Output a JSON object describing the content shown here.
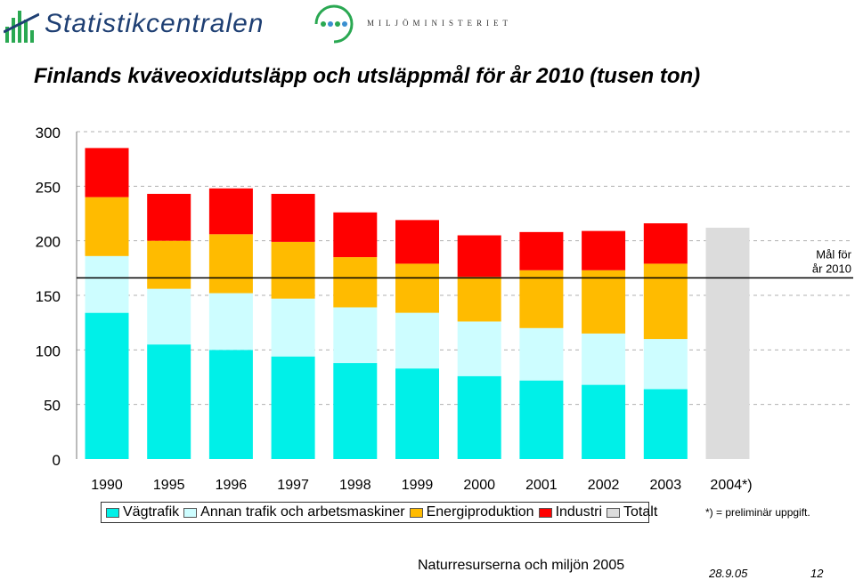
{
  "header": {
    "logo_left": "Statistikcentralen",
    "logo_right": "MILJÖMINISTERIET"
  },
  "colors": {
    "vagtrafik": "#00f0e8",
    "annan_trafik": "#cdfdff",
    "energi": "#ffbb00",
    "industri": "#ff0000",
    "totalt": "#dcdcdc",
    "logo_blue": "#1e3f73",
    "logo_green": "#2aa852"
  },
  "chart_data": {
    "type": "bar",
    "stacked": true,
    "title": "Finlands kväveoxidutsläpp och utsläppmål för år 2010 (tusen ton)",
    "categories": [
      "1990",
      "1995",
      "1996",
      "1997",
      "1998",
      "1999",
      "2000",
      "2001",
      "2002",
      "2003",
      "2004*)"
    ],
    "series": [
      {
        "name": "Vägtrafik",
        "values": [
          134,
          105,
          100,
          94,
          88,
          83,
          76,
          72,
          68,
          64,
          null
        ]
      },
      {
        "name": "Annan trafik och arbetsmaskiner",
        "values": [
          52,
          51,
          52,
          53,
          51,
          51,
          50,
          48,
          47,
          46,
          null
        ]
      },
      {
        "name": "Energiproduktion",
        "values": [
          54,
          44,
          54,
          52,
          46,
          45,
          41,
          53,
          58,
          69,
          null
        ]
      },
      {
        "name": "Industri",
        "values": [
          45,
          43,
          42,
          44,
          41,
          40,
          38,
          35,
          36,
          37,
          null
        ]
      },
      {
        "name": "Totalt",
        "values": [
          null,
          null,
          null,
          null,
          null,
          null,
          null,
          null,
          null,
          null,
          212
        ]
      }
    ],
    "target": {
      "value": 166,
      "label_line1": "Mål för",
      "label_line2": "år 2010"
    },
    "ylim": [
      0,
      300
    ],
    "yticks": [
      0,
      50,
      100,
      150,
      200,
      250,
      300
    ],
    "grid": "dashed"
  },
  "legend": {
    "items": [
      {
        "label": "Vägtrafik",
        "color": "#00f0e8"
      },
      {
        "label": "Annan trafik och arbetsmaskiner",
        "color": "#cdfdff"
      },
      {
        "label": "Energiproduktion",
        "color": "#ffbb00"
      },
      {
        "label": "Industri",
        "color": "#ff0000"
      },
      {
        "label": "Totalt",
        "color": "#dcdcdc"
      }
    ]
  },
  "footnote": "*) = preliminär uppgift.",
  "footer": {
    "source": "Naturresurserna och miljön 2005",
    "date": "28.9.05",
    "page": "12"
  }
}
